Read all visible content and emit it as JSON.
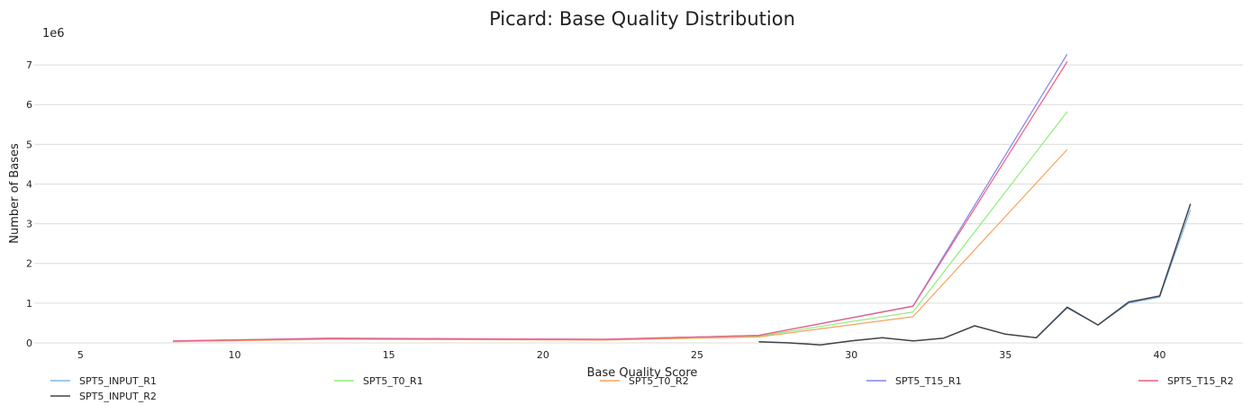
{
  "chart_data": {
    "type": "line",
    "title": "Picard: Base Quality Distribution",
    "xlabel": "Base Quality Score",
    "ylabel": "Number of Bases",
    "y_offset_label": "1e6",
    "xlim": [
      3.5,
      42.7
    ],
    "ylim": [
      0,
      7.5
    ],
    "x_ticks": [
      5,
      10,
      15,
      20,
      25,
      30,
      35,
      40
    ],
    "y_ticks": [
      0,
      1,
      2,
      3,
      4,
      5,
      6,
      7
    ],
    "grid": "horizontal",
    "legend_position": "bottom",
    "series": [
      {
        "name": "SPT5_INPUT_R1",
        "color": "#7cb5ec",
        "x": [
          27,
          28,
          29,
          30,
          31,
          32,
          33,
          34,
          35,
          36,
          37,
          38,
          39,
          40,
          41
        ],
        "values": [
          0.03,
          0.0,
          -0.05,
          0.05,
          0.13,
          0.05,
          0.12,
          0.43,
          0.22,
          0.13,
          0.88,
          0.45,
          1.0,
          1.15,
          3.35
        ]
      },
      {
        "name": "SPT5_INPUT_R2",
        "color": "#434348",
        "x": [
          27,
          28,
          29,
          30,
          31,
          32,
          33,
          34,
          35,
          36,
          37,
          38,
          39,
          40,
          41
        ],
        "values": [
          0.03,
          0.0,
          -0.05,
          0.05,
          0.13,
          0.05,
          0.12,
          0.43,
          0.22,
          0.13,
          0.9,
          0.45,
          1.03,
          1.18,
          3.5
        ]
      },
      {
        "name": "SPT5_T0_R1",
        "color": "#90ed7d",
        "x": [
          8,
          13,
          22,
          27,
          32,
          37
        ],
        "values": [
          0.04,
          0.1,
          0.08,
          0.17,
          0.78,
          5.82
        ]
      },
      {
        "name": "SPT5_T0_R2",
        "color": "#f7a35c",
        "x": [
          8,
          13,
          22,
          27,
          32,
          37
        ],
        "values": [
          0.03,
          0.09,
          0.07,
          0.15,
          0.66,
          4.87
        ]
      },
      {
        "name": "SPT5_T15_R1",
        "color": "#8085e9",
        "x": [
          8,
          13,
          22,
          27,
          32,
          37
        ],
        "values": [
          0.05,
          0.12,
          0.09,
          0.19,
          0.93,
          7.27
        ]
      },
      {
        "name": "SPT5_T15_R2",
        "color": "#f15c80",
        "x": [
          8,
          13,
          22,
          27,
          32,
          37
        ],
        "values": [
          0.05,
          0.11,
          0.09,
          0.19,
          0.92,
          7.08
        ]
      }
    ]
  }
}
